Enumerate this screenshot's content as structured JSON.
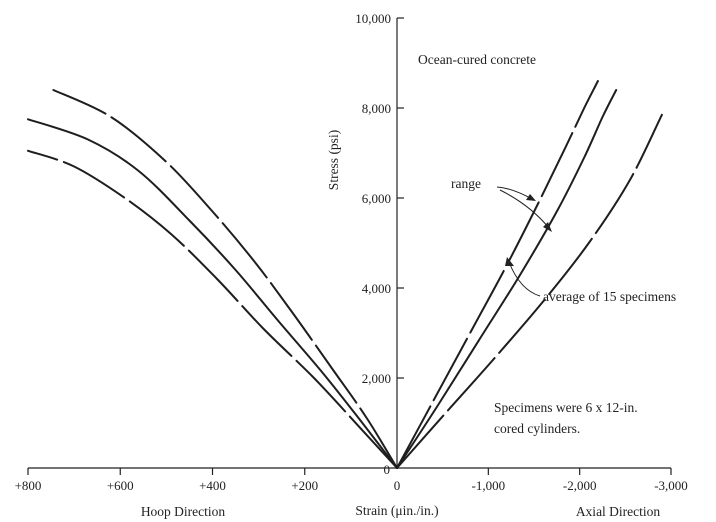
{
  "chart_data": {
    "type": "line",
    "title": "Ocean-cured concrete",
    "ylabel": "Stress (psi)",
    "xlabel": "Strain (μin./in.)",
    "x_region_labels": {
      "left": "Hoop Direction",
      "right": "Axial Direction"
    },
    "ylim": [
      0,
      10000
    ],
    "hoop_xlim": [
      0,
      800
    ],
    "axial_xlim": [
      0,
      -3000
    ],
    "y_ticks": [
      {
        "value": 0,
        "label": "0"
      },
      {
        "value": 2000,
        "label": "2,000"
      },
      {
        "value": 4000,
        "label": "4,000"
      },
      {
        "value": 6000,
        "label": "6,000"
      },
      {
        "value": 8000,
        "label": "8,000"
      },
      {
        "value": 10000,
        "label": "10,000"
      }
    ],
    "hoop_ticks": [
      {
        "value": 800,
        "label": "+800"
      },
      {
        "value": 600,
        "label": "+600"
      },
      {
        "value": 400,
        "label": "+400"
      },
      {
        "value": 200,
        "label": "+200"
      }
    ],
    "axial_ticks": [
      {
        "value": -1000,
        "label": "-1,000"
      },
      {
        "value": -2000,
        "label": "-2,000"
      },
      {
        "value": -3000,
        "label": "-3,000"
      }
    ],
    "origin_label": "0",
    "series": [
      {
        "side": "hoop",
        "style": "dashed",
        "points": [
          [
            0,
            0
          ],
          [
            65,
            1100
          ],
          [
            140,
            2200
          ],
          [
            230,
            3500
          ],
          [
            310,
            4600
          ],
          [
            400,
            5700
          ],
          [
            500,
            6800
          ],
          [
            620,
            7800
          ],
          [
            745,
            8400
          ]
        ]
      },
      {
        "side": "hoop",
        "style": "solid",
        "points": [
          [
            0,
            0
          ],
          [
            75,
            1000
          ],
          [
            160,
            2100
          ],
          [
            260,
            3300
          ],
          [
            350,
            4400
          ],
          [
            450,
            5500
          ],
          [
            560,
            6600
          ],
          [
            670,
            7300
          ],
          [
            800,
            7750
          ]
        ]
      },
      {
        "side": "hoop",
        "style": "dashed",
        "points": [
          [
            0,
            0
          ],
          [
            85,
            950
          ],
          [
            180,
            2000
          ],
          [
            290,
            3100
          ],
          [
            390,
            4200
          ],
          [
            490,
            5200
          ],
          [
            590,
            6000
          ],
          [
            700,
            6700
          ],
          [
            800,
            7050
          ]
        ]
      },
      {
        "side": "axial",
        "style": "dashed",
        "points": [
          [
            0,
            0
          ],
          [
            -400,
            1500
          ],
          [
            -800,
            3000
          ],
          [
            -1200,
            4500
          ],
          [
            -1550,
            5900
          ],
          [
            -1850,
            7150
          ],
          [
            -2050,
            8000
          ],
          [
            -2200,
            8600
          ]
        ]
      },
      {
        "side": "axial",
        "style": "solid",
        "points": [
          [
            0,
            0
          ],
          [
            -450,
            1400
          ],
          [
            -900,
            2850
          ],
          [
            -1350,
            4300
          ],
          [
            -1750,
            5700
          ],
          [
            -2050,
            6900
          ],
          [
            -2250,
            7800
          ],
          [
            -2400,
            8400
          ]
        ]
      },
      {
        "side": "axial",
        "style": "dashed",
        "points": [
          [
            0,
            0
          ],
          [
            -500,
            1150
          ],
          [
            -1050,
            2400
          ],
          [
            -1600,
            3700
          ],
          [
            -2100,
            5000
          ],
          [
            -2550,
            6400
          ],
          [
            -2900,
            7850
          ]
        ]
      }
    ],
    "annotations": [
      {
        "name": "range",
        "text": "range"
      },
      {
        "name": "average",
        "text": "average of 15 specimens"
      },
      {
        "name": "note",
        "lines": [
          "Specimens were 6 x 12-in.",
          "cored cylinders."
        ]
      }
    ]
  }
}
